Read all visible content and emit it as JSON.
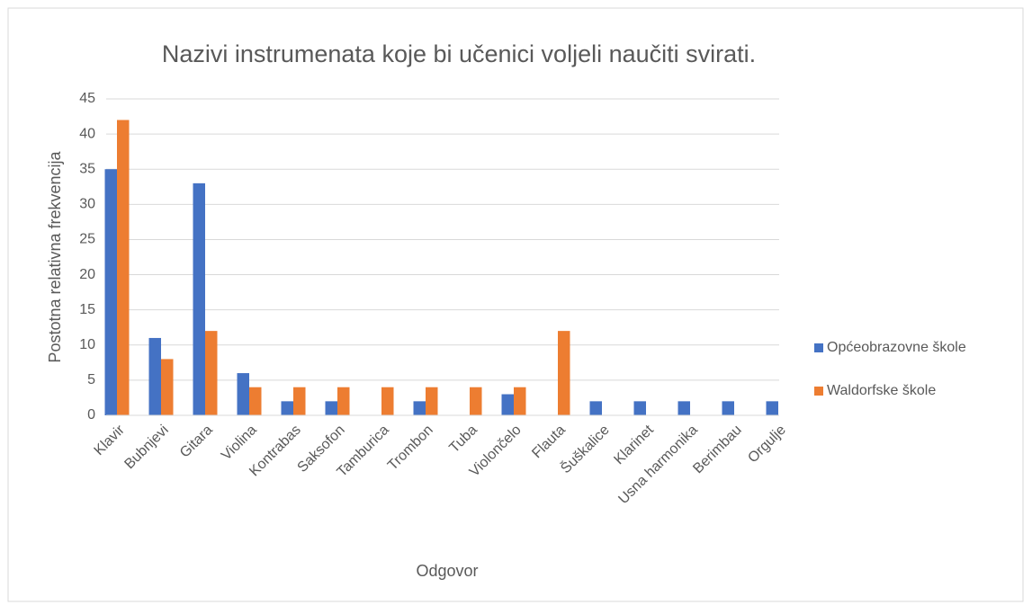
{
  "chart_data": {
    "type": "bar",
    "title": "Nazivi instrumenata koje bi učenici voljeli naučiti svirati.",
    "x_label": "Odgovor",
    "y_label": "Postotna relativna frekvencija",
    "categories": [
      "Klavir",
      "Bubnjevi",
      "Gitara",
      "Violina",
      "Kontrabas",
      "Saksofon",
      "Tamburica",
      "Trombon",
      "Tuba",
      "Violončelo",
      "Flauta",
      "Šuškalice",
      "Klarinet",
      "Usna harmonika",
      "Berimbau",
      "Orgulje"
    ],
    "series": [
      {
        "name": "Općeobrazovne škole",
        "color": "#4472c4",
        "values": [
          35,
          11,
          33,
          6,
          2,
          2,
          0,
          2,
          0,
          3,
          0,
          2,
          2,
          2,
          2,
          2
        ]
      },
      {
        "name": "Waldorfske škole",
        "color": "#ed7d31",
        "values": [
          42,
          8,
          12,
          4,
          4,
          4,
          4,
          4,
          4,
          4,
          12,
          0,
          0,
          0,
          0,
          0
        ]
      }
    ],
    "ylim": [
      0,
      45
    ],
    "yticks": [
      0,
      5,
      10,
      15,
      20,
      25,
      30,
      35,
      40,
      45
    ],
    "grid": true,
    "legend": "right"
  }
}
